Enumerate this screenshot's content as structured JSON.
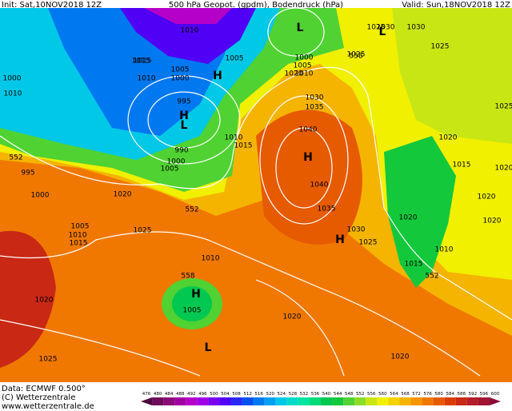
{
  "header": {
    "init": "Init: Sat,10NOV2018 12Z",
    "title": "500 hPa Geopot. (gpdm), Bodendruck (hPa)",
    "valid": "Valid: Sun,18NOV2018 12Z"
  },
  "isobar_labels": [
    "1010",
    "1015",
    "1010",
    "1005",
    "1000",
    "995",
    "990",
    "1000",
    "1005",
    "1010",
    "1015",
    "1020",
    "1025",
    "1030",
    "1025",
    "1030",
    "1035",
    "1040",
    "1040",
    "1035",
    "1030",
    "1025",
    "1020",
    "1015",
    "1010",
    "1005",
    "1000",
    "995",
    "1000",
    "1005",
    "1010",
    "1015",
    "1020",
    "1025",
    "1020",
    "1025",
    "1020",
    "1015",
    "1010",
    "1020",
    "1010",
    "1015",
    "1005",
    "1020",
    "1025",
    "1020",
    "1020",
    "1000",
    "1005",
    "1010",
    "1020",
    "1025",
    "1030"
  ],
  "contour_labels": [
    "552",
    "552",
    "558",
    "558",
    "552"
  ],
  "pressure_centers": [
    "L",
    "H",
    "L",
    "H",
    "H",
    "H",
    "L",
    "L",
    "H"
  ],
  "footer": {
    "data": "Data: ECMWF  0.500°",
    "copyright": "(C) Wetterzentrale",
    "url": "www.wetterzentrale.de"
  },
  "legend": {
    "values": [
      476,
      480,
      484,
      488,
      492,
      496,
      500,
      504,
      508,
      512,
      516,
      520,
      524,
      528,
      532,
      536,
      540,
      544,
      548,
      552,
      556,
      560,
      564,
      568,
      572,
      576,
      580,
      584,
      588,
      592,
      596,
      600
    ],
    "colors": [
      "#4b0a3c",
      "#6e0a5a",
      "#8c0a78",
      "#a000a0",
      "#b400c8",
      "#a000e6",
      "#7800f0",
      "#5000f5",
      "#2828f5",
      "#0050f0",
      "#0078f0",
      "#00a0f0",
      "#00c8e6",
      "#00dcc8",
      "#00e6a0",
      "#00dc78",
      "#00c850",
      "#14c83c",
      "#50d232",
      "#8cdc28",
      "#c8e614",
      "#f0f000",
      "#f5d200",
      "#f5b400",
      "#f59600",
      "#f07800",
      "#e65a00",
      "#dc3c00",
      "#c82814",
      "#b41e28",
      "#a01432",
      "#8c0a3c"
    ]
  }
}
